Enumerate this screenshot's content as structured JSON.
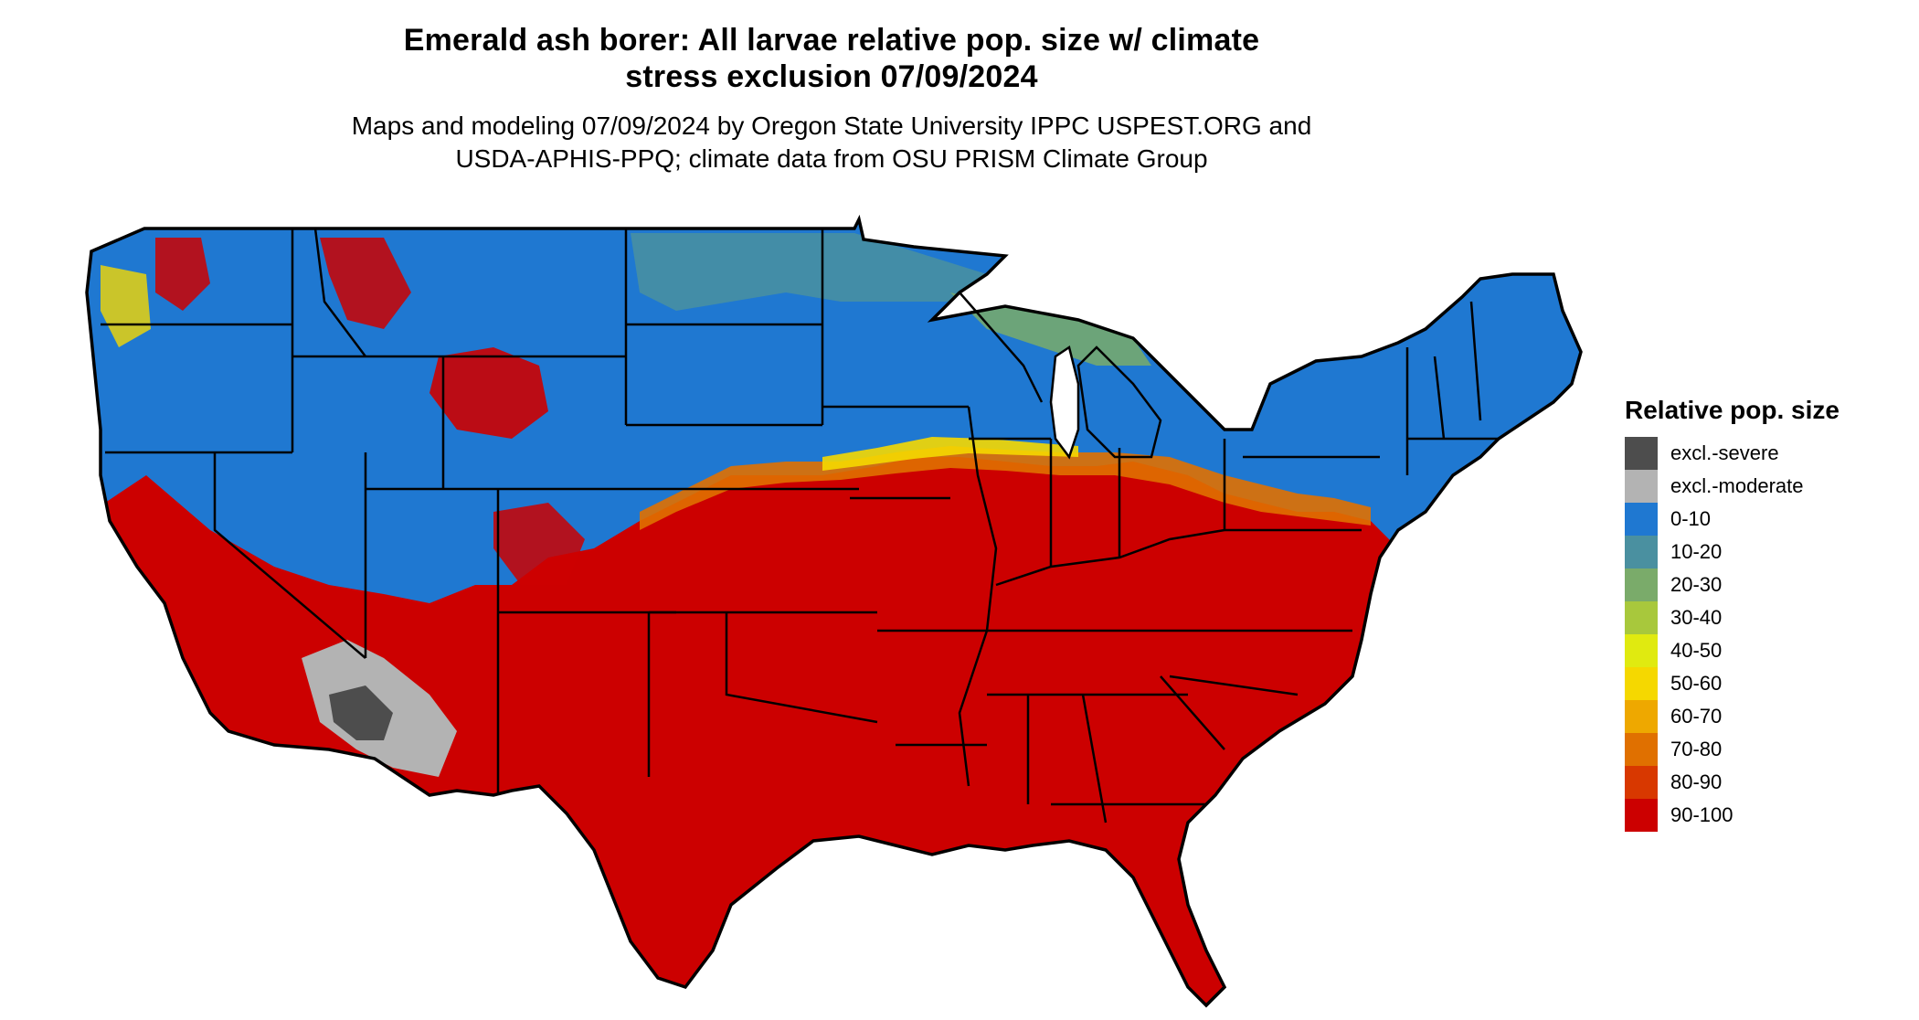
{
  "title": {
    "line1": "Emerald ash borer: All larvae relative pop. size w/ climate",
    "line2": "stress exclusion 07/09/2024"
  },
  "subtitle": {
    "line1": "Maps and modeling 07/09/2024 by Oregon State University IPPC USPEST.ORG and",
    "line2": "USDA-APHIS-PPQ; climate data from OSU PRISM Climate Group"
  },
  "legend": {
    "title": "Relative pop. size",
    "items": [
      {
        "label": "excl.-severe",
        "color": "#4d4d4d"
      },
      {
        "label": "excl.-moderate",
        "color": "#b3b3b3"
      },
      {
        "label": "0-10",
        "color": "#1f78d1"
      },
      {
        "label": "10-20",
        "color": "#4a90a0"
      },
      {
        "label": "20-30",
        "color": "#7aab6a"
      },
      {
        "label": "30-40",
        "color": "#a8c83c"
      },
      {
        "label": "40-50",
        "color": "#e0ea10"
      },
      {
        "label": "50-60",
        "color": "#f5d800"
      },
      {
        "label": "60-70",
        "color": "#eea800"
      },
      {
        "label": "70-80",
        "color": "#e07000"
      },
      {
        "label": "80-90",
        "color": "#d83800"
      },
      {
        "label": "90-100",
        "color": "#cc0000"
      }
    ]
  },
  "map_colors": {
    "border": "#000000",
    "north": "#1f78d1",
    "south": "#cc0000",
    "transition": "#e07000",
    "severe": "#4d4d4d",
    "moderate": "#b3b3b3"
  }
}
